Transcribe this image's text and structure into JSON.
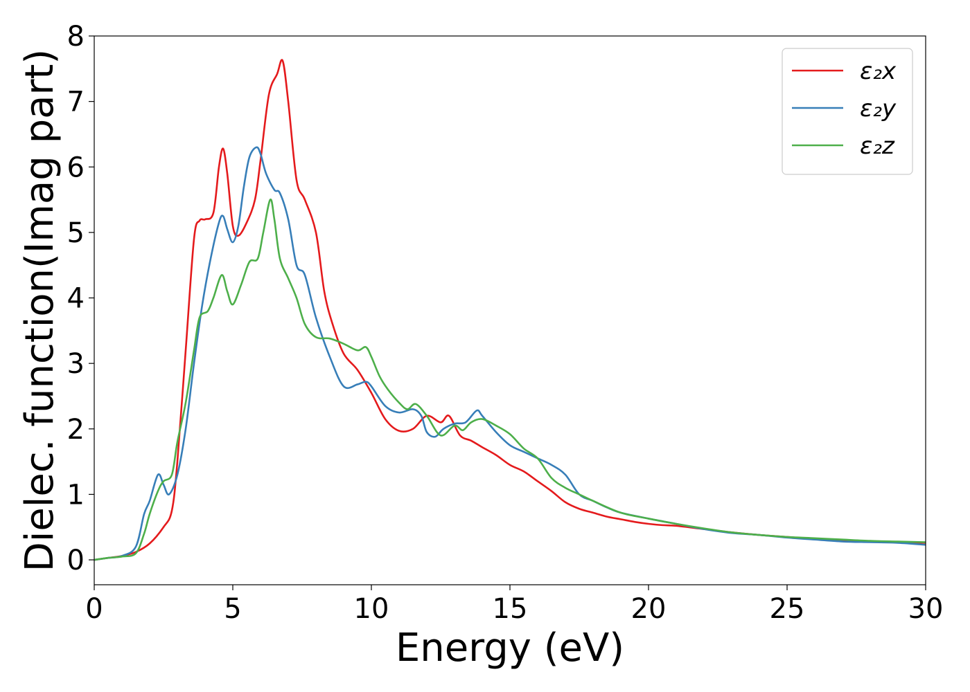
{
  "chart_data": {
    "type": "line",
    "title": "",
    "xlabel": "Energy (eV)",
    "ylabel": "Dielec. function(Imag part)",
    "xlim": [
      0,
      30
    ],
    "ylim": [
      -0.38,
      8
    ],
    "xticks": [
      0,
      5,
      10,
      15,
      20,
      25,
      30
    ],
    "yticks": [
      0,
      1,
      2,
      3,
      4,
      5,
      6,
      7,
      8
    ],
    "grid": false,
    "legend_position": "top-right",
    "series": [
      {
        "name": "ε₂x",
        "color": "#e41a1c",
        "x": [
          0,
          0.5,
          1.0,
          1.5,
          2.0,
          2.5,
          2.8,
          3.0,
          3.3,
          3.6,
          3.8,
          4.0,
          4.3,
          4.5,
          4.65,
          4.8,
          5.0,
          5.2,
          5.5,
          5.8,
          6.0,
          6.3,
          6.6,
          6.8,
          7.0,
          7.3,
          7.6,
          8.0,
          8.3,
          8.6,
          9.0,
          9.5,
          10.0,
          10.5,
          11.0,
          11.5,
          12.0,
          12.5,
          12.8,
          13.2,
          13.6,
          14.0,
          14.5,
          15.0,
          15.5,
          16.0,
          16.5,
          17.0,
          17.5,
          18.0,
          18.5,
          19.0,
          19.5,
          20.0,
          20.5,
          21.0,
          22.0,
          23.0,
          24.0,
          25.0,
          26.0,
          27.0,
          28.0,
          29.0,
          30.0
        ],
        "y": [
          0.0,
          0.03,
          0.06,
          0.12,
          0.25,
          0.5,
          0.75,
          1.5,
          3.2,
          4.9,
          5.18,
          5.2,
          5.3,
          6.0,
          6.28,
          5.9,
          5.1,
          4.95,
          5.15,
          5.5,
          6.1,
          7.1,
          7.42,
          7.62,
          7.0,
          5.8,
          5.5,
          5.0,
          4.1,
          3.6,
          3.15,
          2.9,
          2.55,
          2.15,
          1.97,
          2.0,
          2.2,
          2.1,
          2.2,
          1.9,
          1.82,
          1.72,
          1.6,
          1.45,
          1.35,
          1.2,
          1.05,
          0.88,
          0.78,
          0.72,
          0.66,
          0.62,
          0.58,
          0.55,
          0.53,
          0.52,
          0.47,
          0.42,
          0.38,
          0.35,
          0.32,
          0.3,
          0.28,
          0.27,
          0.26
        ]
      },
      {
        "name": "ε₂y",
        "color": "#377eb8",
        "x": [
          0,
          0.5,
          1.0,
          1.5,
          1.8,
          2.0,
          2.3,
          2.5,
          2.7,
          3.0,
          3.3,
          3.6,
          3.9,
          4.2,
          4.5,
          4.65,
          4.8,
          5.0,
          5.2,
          5.4,
          5.6,
          5.85,
          6.0,
          6.2,
          6.5,
          6.7,
          7.0,
          7.3,
          7.6,
          8.0,
          8.5,
          9.0,
          9.5,
          9.8,
          10.0,
          10.5,
          11.0,
          11.5,
          11.8,
          12.0,
          12.3,
          12.6,
          13.0,
          13.4,
          13.8,
          14.0,
          14.5,
          15.0,
          15.5,
          16.0,
          16.5,
          17.0,
          17.5,
          18.0,
          18.5,
          19.0,
          20.0,
          21.0,
          22.0,
          23.0,
          24.0,
          25.0,
          26.0,
          27.0,
          28.0,
          29.0,
          30.0
        ],
        "y": [
          0.0,
          0.03,
          0.06,
          0.2,
          0.7,
          0.9,
          1.3,
          1.15,
          1.0,
          1.3,
          2.0,
          3.0,
          3.9,
          4.6,
          5.15,
          5.25,
          5.05,
          4.85,
          5.1,
          5.7,
          6.15,
          6.3,
          6.2,
          5.9,
          5.65,
          5.6,
          5.2,
          4.5,
          4.35,
          3.7,
          3.1,
          2.65,
          2.68,
          2.72,
          2.65,
          2.35,
          2.25,
          2.3,
          2.2,
          1.95,
          1.88,
          2.0,
          2.08,
          2.1,
          2.28,
          2.2,
          1.95,
          1.75,
          1.65,
          1.55,
          1.45,
          1.3,
          1.0,
          0.9,
          0.8,
          0.72,
          0.63,
          0.55,
          0.47,
          0.41,
          0.38,
          0.34,
          0.31,
          0.28,
          0.27,
          0.26,
          0.23
        ]
      },
      {
        "name": "ε₂z",
        "color": "#4daf4a",
        "x": [
          0,
          0.5,
          1.0,
          1.5,
          1.8,
          2.0,
          2.3,
          2.5,
          2.8,
          3.0,
          3.3,
          3.6,
          3.8,
          4.1,
          4.3,
          4.6,
          4.8,
          5.0,
          5.3,
          5.6,
          5.9,
          6.1,
          6.35,
          6.5,
          6.7,
          7.0,
          7.3,
          7.6,
          8.0,
          8.5,
          9.0,
          9.5,
          9.8,
          10.0,
          10.3,
          10.6,
          11.0,
          11.3,
          11.6,
          12.0,
          12.5,
          13.0,
          13.3,
          13.6,
          14.0,
          14.5,
          15.0,
          15.5,
          16.0,
          16.5,
          17.0,
          17.5,
          18.0,
          19.0,
          20.0,
          21.0,
          22.0,
          23.0,
          24.0,
          25.0,
          26.0,
          27.0,
          28.0,
          29.0,
          30.0
        ],
        "y": [
          0.0,
          0.03,
          0.05,
          0.1,
          0.4,
          0.7,
          1.05,
          1.2,
          1.3,
          1.8,
          2.4,
          3.2,
          3.7,
          3.8,
          4.0,
          4.35,
          4.1,
          3.9,
          4.2,
          4.55,
          4.6,
          5.0,
          5.5,
          5.2,
          4.6,
          4.3,
          4.0,
          3.6,
          3.4,
          3.38,
          3.3,
          3.2,
          3.25,
          3.1,
          2.8,
          2.6,
          2.4,
          2.3,
          2.38,
          2.2,
          1.9,
          2.05,
          1.98,
          2.1,
          2.15,
          2.05,
          1.92,
          1.7,
          1.55,
          1.25,
          1.1,
          1.0,
          0.9,
          0.72,
          0.63,
          0.55,
          0.48,
          0.42,
          0.38,
          0.35,
          0.33,
          0.31,
          0.29,
          0.28,
          0.27
        ]
      }
    ]
  }
}
